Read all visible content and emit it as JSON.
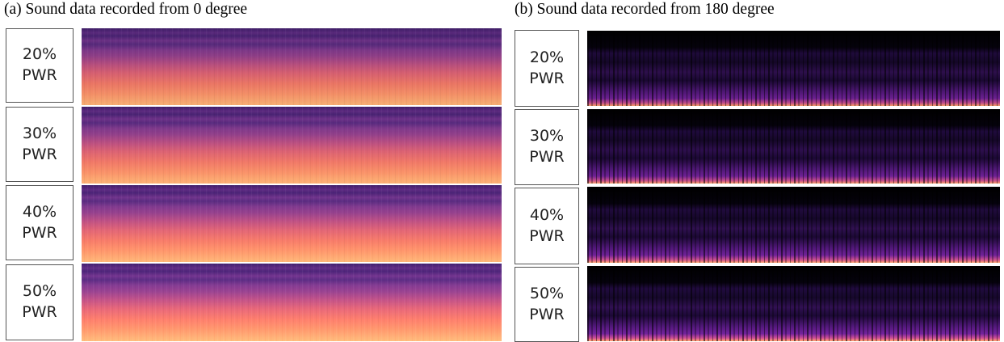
{
  "panels": [
    {
      "title": "(a) Sound data recorded from 0 degree",
      "rows": [
        [
          "20%",
          "PWR"
        ],
        [
          "30%",
          "PWR"
        ],
        [
          "40%",
          "PWR"
        ],
        [
          "50%",
          "PWR"
        ]
      ]
    },
    {
      "title": "(b) Sound data recorded from 180 degree",
      "rows": [
        [
          "20%",
          "PWR"
        ],
        [
          "30%",
          "PWR"
        ],
        [
          "40%",
          "PWR"
        ],
        [
          "50%",
          "PWR"
        ]
      ]
    }
  ]
}
